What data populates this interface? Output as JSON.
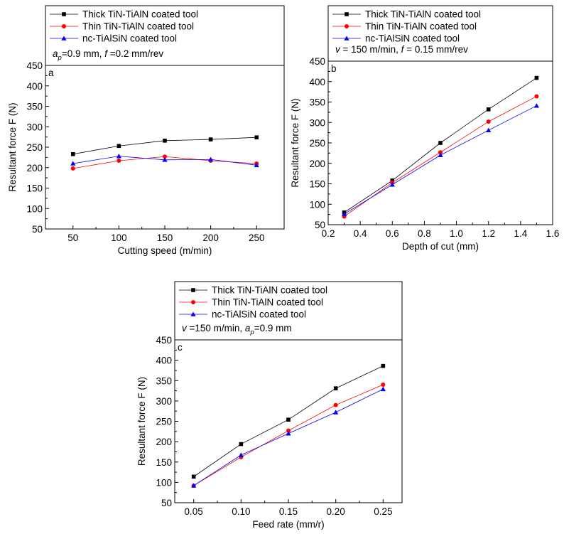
{
  "chart_data": [
    {
      "type": "line",
      "panel_label": "a",
      "xlabel": "Cutting speed (m/min)",
      "ylabel": "Resultant force F (N)",
      "xlim": [
        20,
        280
      ],
      "ylim": [
        50,
        450
      ],
      "xticks": [
        50,
        100,
        150,
        200,
        250
      ],
      "yticks": [
        50,
        100,
        150,
        200,
        250,
        300,
        350,
        400,
        450
      ],
      "xtick_labels": [
        "50",
        "100",
        "150",
        "200",
        "250"
      ],
      "ytick_labels": [
        "50",
        "100",
        "150",
        "200",
        "250",
        "300",
        "350",
        "400",
        "450"
      ],
      "x": [
        50,
        100,
        150,
        200,
        250
      ],
      "legend_position": "top",
      "conditions": {
        "prefix": "a",
        "sub": "p",
        "mid": "=0.9 mm, ",
        "italic2": "f",
        "suffix": " =0.2 mm/rev"
      },
      "series": [
        {
          "name": "Thick TiN-TiAlN coated tool",
          "color": "#000000",
          "marker": "square",
          "values": [
            233,
            253,
            266,
            269,
            274
          ]
        },
        {
          "name": "Thin TiN-TiAlN coated tool",
          "color": "#ff0000",
          "marker": "circle",
          "values": [
            198,
            217,
            227,
            217,
            210
          ]
        },
        {
          "name": "nc-TiAlSiN coated tool",
          "color": "#0000ff",
          "marker": "triangle",
          "values": [
            210,
            228,
            219,
            220,
            206
          ]
        }
      ]
    },
    {
      "type": "line",
      "panel_label": "b",
      "xlabel": "Depth of cut (mm)",
      "ylabel": "Resultant force F (N)",
      "xlim": [
        0.2,
        1.6
      ],
      "ylim": [
        50,
        450
      ],
      "xticks": [
        0.2,
        0.4,
        0.6,
        0.8,
        1.0,
        1.2,
        1.4,
        1.6
      ],
      "yticks": [
        50,
        100,
        150,
        200,
        250,
        300,
        350,
        400,
        450
      ],
      "xtick_labels": [
        "0.2",
        "0.4",
        "0.6",
        "0.8",
        "1.0",
        "1.2",
        "1.4",
        "1.6"
      ],
      "ytick_labels": [
        "50",
        "100",
        "150",
        "200",
        "250",
        "300",
        "350",
        "400",
        "450"
      ],
      "x": [
        0.3,
        0.6,
        0.9,
        1.2,
        1.5
      ],
      "legend_position": "top",
      "conditions": {
        "prefix": "v",
        "sub": "",
        "mid": " = 150 m/min, ",
        "italic2": "f",
        "suffix": " = 0.15 mm/rev"
      },
      "series": [
        {
          "name": "Thick TiN-TiAlN coated tool",
          "color": "#000000",
          "marker": "square",
          "values": [
            80,
            158,
            250,
            332,
            409
          ]
        },
        {
          "name": "Thin TiN-TiAlN coated tool",
          "color": "#ff0000",
          "marker": "circle",
          "values": [
            70,
            153,
            227,
            302,
            364
          ]
        },
        {
          "name": "nc-TiAlSiN coated tool",
          "color": "#0000ff",
          "marker": "triangle",
          "values": [
            76,
            148,
            220,
            281,
            341
          ]
        }
      ]
    },
    {
      "type": "line",
      "panel_label": "c",
      "xlabel": "Feed rate (mm/r)",
      "ylabel": "Resultant force F (N)",
      "xlim": [
        0.03,
        0.27
      ],
      "ylim": [
        50,
        450
      ],
      "xticks": [
        0.05,
        0.1,
        0.15,
        0.2,
        0.25
      ],
      "yticks": [
        50,
        100,
        150,
        200,
        250,
        300,
        350,
        400,
        450
      ],
      "xtick_labels": [
        "0.05",
        "0.10",
        "0.15",
        "0.20",
        "0.25"
      ],
      "ytick_labels": [
        "50",
        "100",
        "150",
        "200",
        "250",
        "300",
        "350",
        "400",
        "450"
      ],
      "x": [
        0.05,
        0.1,
        0.15,
        0.2,
        0.25
      ],
      "legend_position": "top",
      "conditions": {
        "prefix": "v",
        "sub": "p",
        "mid": " =150 m/min, a",
        "italic2": "",
        "suffix": "=0.9 mm"
      },
      "series": [
        {
          "name": "Thick TiN-TiAlN coated tool",
          "color": "#000000",
          "marker": "square",
          "values": [
            114,
            194,
            254,
            331,
            386
          ]
        },
        {
          "name": "Thin TiN-TiAlN coated tool",
          "color": "#ff0000",
          "marker": "circle",
          "values": [
            92,
            162,
            227,
            290,
            340
          ]
        },
        {
          "name": "nc-TiAlSiN coated tool",
          "color": "#0000ff",
          "marker": "triangle",
          "values": [
            92,
            167,
            220,
            272,
            329
          ]
        }
      ]
    }
  ]
}
